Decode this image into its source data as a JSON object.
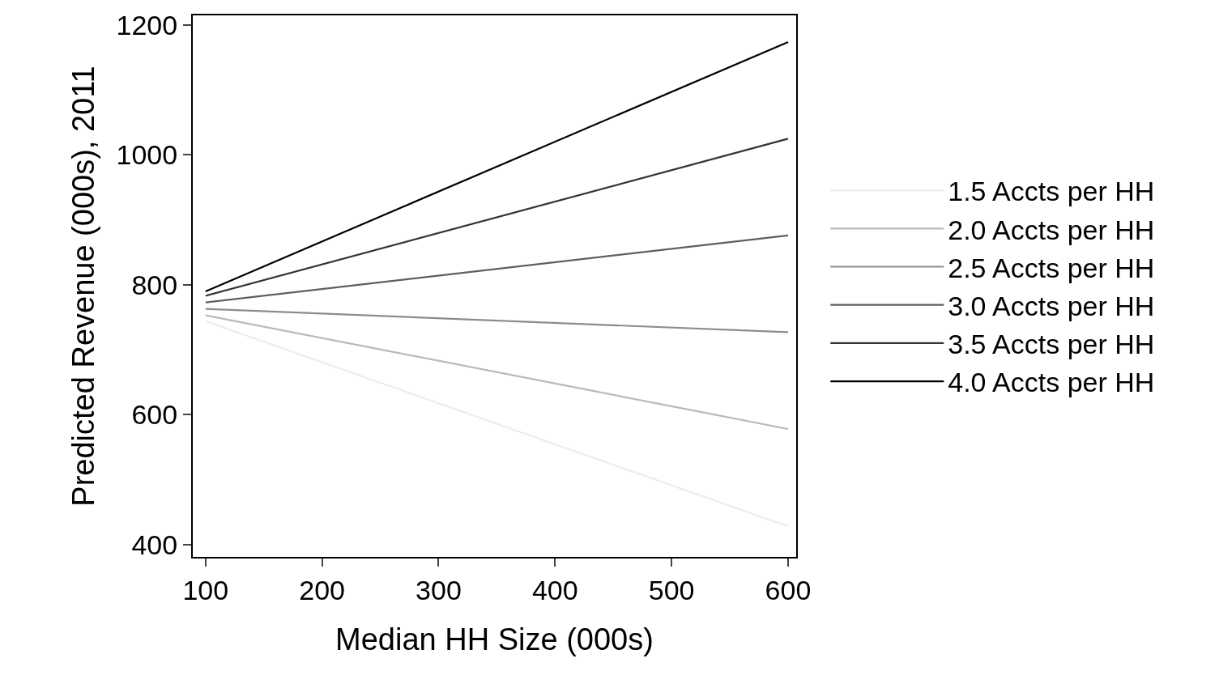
{
  "chart_data": {
    "type": "line",
    "xlabel": "Median HH Size (000s)",
    "ylabel": "Predicted Revenue (000s), 2011",
    "x": [
      100,
      600
    ],
    "series": [
      {
        "name": "1.5 Accts per HH",
        "color": "#ececec",
        "values": [
          744,
          428
        ]
      },
      {
        "name": "2.0 Accts per HH",
        "color": "#b9b9b9",
        "values": [
          753,
          578
        ]
      },
      {
        "name": "2.5 Accts per HH",
        "color": "#8c8c8c",
        "values": [
          763,
          727
        ]
      },
      {
        "name": "3.0 Accts per HH",
        "color": "#5f5f5f",
        "values": [
          773,
          876
        ]
      },
      {
        "name": "3.5 Accts per HH",
        "color": "#333333",
        "values": [
          783,
          1025
        ]
      },
      {
        "name": "4.0 Accts per HH",
        "color": "#000000",
        "values": [
          790,
          1174
        ]
      }
    ],
    "xlim": [
      89,
      607
    ],
    "xticks": [
      100,
      200,
      300,
      400,
      500,
      600
    ],
    "ylim": [
      381,
      1215
    ],
    "yticks": [
      400,
      600,
      800,
      1000,
      1200
    ],
    "legend": "right",
    "marker": "none",
    "line_style": "solid"
  }
}
